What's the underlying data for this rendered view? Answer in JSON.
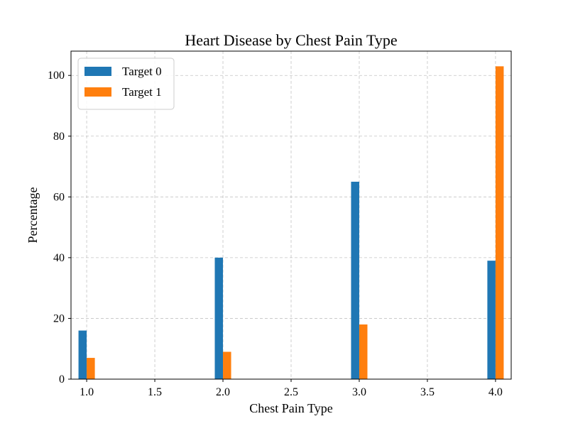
{
  "chart_data": {
    "type": "bar",
    "title": "Heart Disease by Chest Pain Type",
    "xlabel": "Chest Pain Type",
    "ylabel": "Percentage",
    "xlim": [
      0.885,
      4.115
    ],
    "ylim": [
      0,
      108
    ],
    "xticks": [
      1.0,
      1.5,
      2.0,
      2.5,
      3.0,
      3.5,
      4.0
    ],
    "xtick_labels": [
      "1.0",
      "1.5",
      "2.0",
      "2.5",
      "3.0",
      "3.5",
      "4.0"
    ],
    "yticks": [
      0,
      20,
      40,
      60,
      80,
      100
    ],
    "ytick_labels": [
      "0",
      "20",
      "40",
      "60",
      "80",
      "100"
    ],
    "grid": true,
    "legend_position": "top-left",
    "x": [
      1,
      2,
      3,
      4
    ],
    "series": [
      {
        "name": "Target 0",
        "color": "#1f77b4",
        "values": [
          16,
          40,
          65,
          39
        ]
      },
      {
        "name": "Target 1",
        "color": "#ff7f0e",
        "values": [
          7,
          9,
          18,
          103
        ]
      }
    ]
  }
}
